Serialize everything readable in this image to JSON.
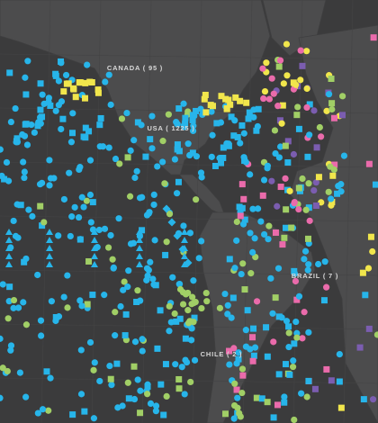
{
  "labels": [
    {
      "text": "CANADA ( 95 )"
    },
    {
      "text": "USA ( 1225 )"
    },
    {
      "text": "BRAZIL ( 7 )"
    },
    {
      "text": "CHILE ( 2 )"
    }
  ]
}
